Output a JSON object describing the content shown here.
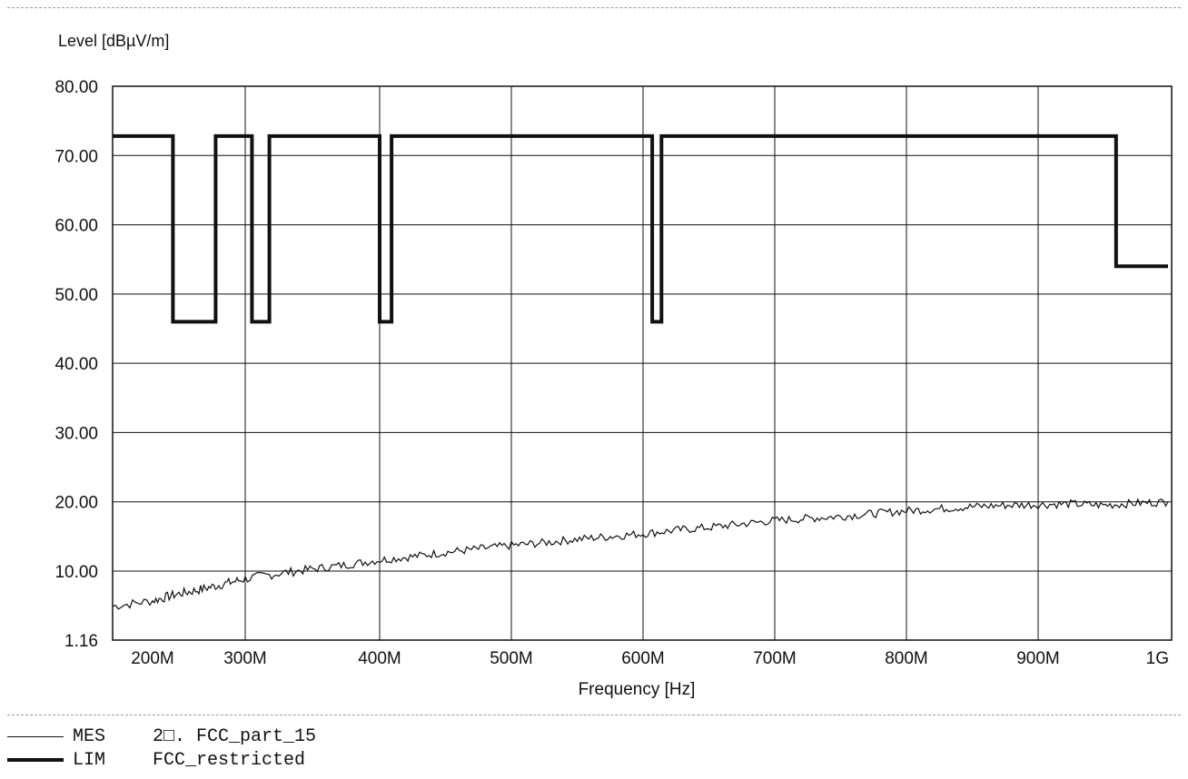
{
  "chart_data": {
    "type": "line",
    "title": "",
    "ylabel": "Level [dBµV/m]",
    "xlabel": "Frequency [Hz]",
    "xlim": [
      180,
      1000
    ],
    "ylim": [
      1.16,
      80
    ],
    "x_tick_values": [
      200,
      300,
      400,
      500,
      600,
      700,
      800,
      900,
      1000
    ],
    "x_tick_labels": [
      "200M",
      "300M",
      "400M",
      "500M",
      "600M",
      "700M",
      "800M",
      "900M",
      "1G"
    ],
    "y_tick_values": [
      1.16,
      10,
      20,
      30,
      40,
      50,
      60,
      70,
      80
    ],
    "y_tick_labels": [
      "1.16",
      "10.00",
      "20.00",
      "30.00",
      "40.00",
      "50.00",
      "60.00",
      "70.00",
      "80.00"
    ],
    "grid": true,
    "legend_position": "bottom-left",
    "series": [
      {
        "name": "LIM",
        "style": "thick",
        "color": "#111111",
        "points": [
          [
            180,
            72.8
          ],
          [
            222,
            72.8
          ],
          [
            222,
            46
          ],
          [
            268,
            46
          ],
          [
            268,
            72.8
          ],
          [
            305,
            72.8
          ],
          [
            305,
            46
          ],
          [
            318,
            46
          ],
          [
            318,
            72.8
          ],
          [
            400,
            72.8
          ],
          [
            400,
            46
          ],
          [
            409,
            46
          ],
          [
            409,
            72.8
          ],
          [
            607,
            72.8
          ],
          [
            607,
            46
          ],
          [
            614,
            46
          ],
          [
            614,
            72.8
          ],
          [
            960,
            72.8
          ],
          [
            960,
            54
          ],
          [
            1000,
            54
          ]
        ]
      },
      {
        "name": "MES",
        "style": "thin",
        "color": "#111111",
        "points": [
          [
            180,
            5.5
          ],
          [
            200,
            6.2
          ],
          [
            225,
            7.0
          ],
          [
            250,
            7.6
          ],
          [
            275,
            8.3
          ],
          [
            300,
            9.0
          ],
          [
            325,
            9.7
          ],
          [
            350,
            10.3
          ],
          [
            375,
            10.9
          ],
          [
            400,
            11.6
          ],
          [
            425,
            12.1
          ],
          [
            450,
            12.7
          ],
          [
            475,
            13.2
          ],
          [
            500,
            13.7
          ],
          [
            525,
            14.1
          ],
          [
            550,
            14.6
          ],
          [
            575,
            15.0
          ],
          [
            600,
            15.4
          ],
          [
            625,
            15.9
          ],
          [
            650,
            16.3
          ],
          [
            675,
            16.8
          ],
          [
            700,
            17.3
          ],
          [
            725,
            17.6
          ],
          [
            750,
            17.9
          ],
          [
            775,
            18.3
          ],
          [
            800,
            18.7
          ],
          [
            825,
            19.0
          ],
          [
            850,
            19.3
          ],
          [
            875,
            19.5
          ],
          [
            900,
            19.6
          ],
          [
            925,
            19.7
          ],
          [
            950,
            19.5
          ],
          [
            975,
            19.8
          ],
          [
            1000,
            20.0
          ]
        ]
      }
    ]
  },
  "legend": [
    {
      "code": "MES",
      "text": "2□. FCC_part_15"
    },
    {
      "code": "LIM",
      "text": "FCC_restricted"
    }
  ]
}
